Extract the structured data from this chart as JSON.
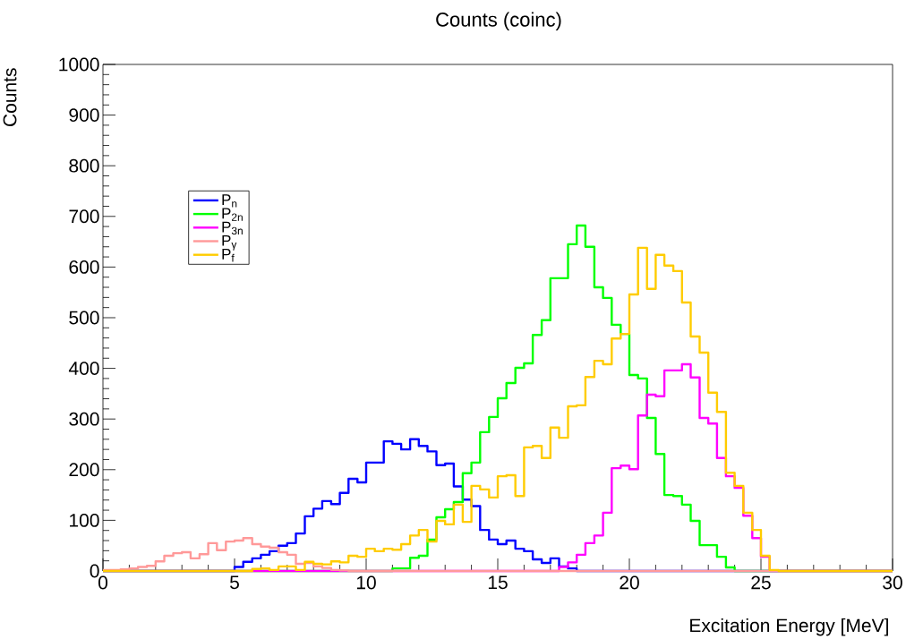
{
  "chart_data": {
    "type": "histogram",
    "title": "Counts (coinc)",
    "xlabel": "Excitation Energy [MeV]",
    "ylabel": "Counts",
    "bins": [
      0,
      0.33,
      0.67,
      1,
      1.33,
      1.67,
      2,
      2.33,
      2.67,
      3,
      3.33,
      3.67,
      4,
      4.33,
      4.67,
      5,
      5.33,
      5.67,
      6,
      6.33,
      6.67,
      7,
      7.33,
      7.67,
      8,
      8.33,
      8.67,
      9,
      9.33,
      9.67,
      10,
      10.33,
      10.67,
      11,
      11.33,
      11.67,
      12,
      12.33,
      12.67,
      13,
      13.33,
      13.67,
      14,
      14.33,
      14.67,
      15,
      15.33,
      15.67,
      16,
      16.33,
      16.67,
      17,
      17.33,
      17.67,
      18,
      18.33,
      18.67,
      19,
      19.33,
      19.67,
      20,
      20.33,
      20.67,
      21,
      21.33,
      21.67,
      22,
      22.33,
      22.67,
      23,
      23.33,
      23.67,
      24,
      24.33,
      24.67,
      25,
      25.33,
      25.67,
      26,
      26.33,
      26.67,
      27,
      27.33,
      27.67,
      28,
      28.33,
      28.67,
      29,
      29.33,
      29.67,
      30
    ],
    "series": [
      {
        "name": "P$_{n}$",
        "color": "#0000ff",
        "values": [
          0,
          0,
          0,
          0,
          0,
          0,
          0,
          0,
          0,
          0,
          0,
          0,
          0,
          0,
          0,
          8,
          18,
          25,
          32,
          39,
          50,
          55,
          74,
          108,
          123,
          138,
          132,
          154,
          182,
          175,
          214,
          214,
          256,
          251,
          240,
          260,
          247,
          236,
          209,
          212,
          167,
          141,
          128,
          81,
          62,
          53,
          60,
          44,
          39,
          23,
          16,
          25,
          9,
          5,
          0,
          0,
          0,
          0,
          0,
          0,
          0,
          0,
          0,
          0,
          0,
          0,
          0,
          0,
          0,
          0,
          0,
          0,
          0,
          0,
          0,
          0,
          0,
          0,
          0,
          0,
          0,
          0,
          0,
          0,
          0,
          0,
          0,
          0,
          0,
          0
        ]
      },
      {
        "name": "P$_{2n}$",
        "color": "#00ff00",
        "values": [
          0,
          0,
          0,
          0,
          0,
          0,
          0,
          0,
          0,
          0,
          0,
          0,
          0,
          0,
          0,
          0,
          0,
          0,
          0,
          0,
          0,
          0,
          0,
          0,
          0,
          0,
          0,
          0,
          0,
          0,
          0,
          0,
          0,
          5,
          5,
          26,
          30,
          62,
          106,
          122,
          136,
          193,
          214,
          274,
          304,
          341,
          371,
          401,
          410,
          466,
          495,
          578,
          578,
          645,
          682,
          640,
          560,
          539,
          486,
          468,
          387,
          380,
          302,
          231,
          150,
          148,
          131,
          99,
          51,
          51,
          28,
          7,
          0,
          0,
          0,
          0,
          0,
          0,
          0,
          0,
          0,
          0,
          0,
          0,
          0,
          0,
          0,
          0,
          0,
          0
        ]
      },
      {
        "name": "P$_{3n}$",
        "color": "#ff00ff",
        "values": [
          0,
          0,
          0,
          0,
          0,
          0,
          0,
          0,
          0,
          0,
          0,
          0,
          0,
          0,
          0,
          0,
          0,
          0,
          0,
          0,
          0,
          0,
          0,
          0,
          0,
          0,
          0,
          0,
          0,
          0,
          0,
          0,
          0,
          0,
          0,
          0,
          0,
          0,
          0,
          0,
          0,
          0,
          0,
          0,
          0,
          0,
          0,
          0,
          0,
          0,
          0,
          0,
          8,
          17,
          32,
          55,
          70,
          115,
          203,
          208,
          201,
          307,
          348,
          345,
          396,
          396,
          408,
          382,
          302,
          291,
          223,
          187,
          164,
          109,
          65,
          28,
          0,
          0,
          0,
          0,
          0,
          0,
          0,
          0,
          0,
          0,
          0,
          0,
          0,
          0
        ]
      },
      {
        "name": "P$_{γ}$",
        "color": "#ff9999",
        "values": [
          2,
          2,
          3,
          5,
          8,
          10,
          19,
          30,
          35,
          37,
          25,
          33,
          55,
          41,
          58,
          60,
          65,
          53,
          48,
          46,
          37,
          32,
          14,
          16,
          9,
          6,
          2,
          1,
          0,
          0,
          0,
          0,
          0,
          0,
          0,
          0,
          0,
          0,
          0,
          0,
          0,
          0,
          0,
          0,
          0,
          0,
          0,
          0,
          0,
          0,
          0,
          0,
          0,
          0,
          0,
          0,
          0,
          0,
          0,
          0,
          0,
          0,
          0,
          0,
          0,
          0,
          0,
          0,
          0,
          0,
          0,
          0,
          0,
          0,
          0,
          0,
          0,
          0,
          0,
          0,
          0,
          0,
          0,
          0,
          0,
          0,
          0,
          0,
          0,
          0
        ]
      },
      {
        "name": "P$_{f}$",
        "color": "#ffcc00",
        "values": [
          0,
          0,
          0,
          0,
          0,
          0,
          0,
          0,
          0,
          0,
          0,
          0,
          0,
          0,
          0,
          0,
          0,
          4,
          5,
          2,
          9,
          9,
          2,
          18,
          14,
          13,
          19,
          17,
          30,
          28,
          44,
          39,
          44,
          42,
          53,
          70,
          81,
          58,
          99,
          92,
          131,
          97,
          168,
          161,
          145,
          187,
          189,
          148,
          244,
          247,
          223,
          283,
          263,
          325,
          327,
          383,
          415,
          408,
          459,
          468,
          546,
          638,
          557,
          624,
          603,
          592,
          530,
          463,
          431,
          352,
          314,
          194,
          168,
          115,
          81,
          30,
          2,
          0,
          0,
          0,
          0,
          0,
          0,
          0,
          0,
          0,
          0,
          0,
          0,
          0
        ]
      }
    ],
    "xlim": [
      0,
      30
    ],
    "ylim": [
      0,
      1000
    ],
    "xticks": [
      0,
      5,
      10,
      15,
      20,
      25,
      30
    ],
    "yticks": [
      0,
      100,
      200,
      300,
      400,
      500,
      600,
      700,
      800,
      900,
      1000
    ],
    "legend": "top left"
  }
}
